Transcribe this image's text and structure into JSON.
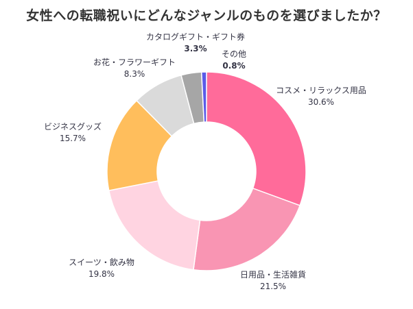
{
  "title": "女性への転職祝いにどんなジャンルのものを選びましたか？",
  "chart_data": {
    "type": "pie",
    "donut": true,
    "categories": [
      "コスメ・リラックス用品",
      "日用品・生活雑貨",
      "スイーツ・飲み物",
      "ビジネスグッズ",
      "お花・フラワーギフト",
      "カタログギフト・ギフト券",
      "その他"
    ],
    "values": [
      30.6,
      21.5,
      19.8,
      15.7,
      8.3,
      3.3,
      0.8
    ],
    "value_labels": [
      "30.6%",
      "21.5%",
      "19.8%",
      "15.7%",
      "8.3%",
      "3.3%",
      "0.8%"
    ],
    "colors": [
      "#FF6B9A",
      "#F995B3",
      "#FFD4E1",
      "#FFBE5C",
      "#DADADA",
      "#A6A6A6",
      "#5B5BE8"
    ],
    "start_angle": "12 o'clock",
    "direction": "clockwise",
    "legend": "none"
  }
}
